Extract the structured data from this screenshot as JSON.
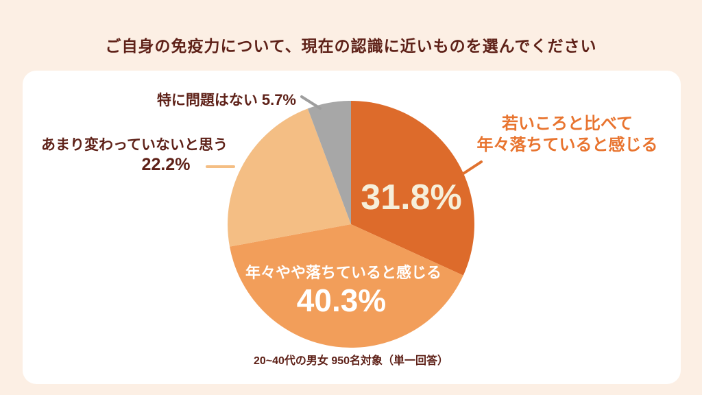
{
  "page": {
    "title": "ご自身の免疫力について、現在の認識に近いものを選んでください",
    "footnote": "20~40代の男女 950名対象（単一回答）"
  },
  "colors": {
    "page_background": "#FCEFE4",
    "card_background": "#FFFFFF",
    "dark_text": "#5E2118",
    "accent_orange": "#E8742F",
    "leader_gray": "#9E9E9E",
    "leader_light_orange": "#F4BE84",
    "leader_orange": "#E0712E",
    "inside_pct_cream": "#F6EFDA",
    "inside_text_white": "#FFFFFF"
  },
  "chart_data": {
    "type": "pie",
    "title": "ご自身の免疫力について、現在の認識に近いものを選んでください",
    "start_angle_deg": 0,
    "direction": "clockwise",
    "slices": [
      {
        "label": "若いころと比べて年々落ちていると感じる",
        "value": 31.8,
        "display": "31.8%",
        "color": "#DD6B2B"
      },
      {
        "label": "年々やや落ちていると感じる",
        "value": 40.3,
        "display": "40.3%",
        "color": "#F29E5A"
      },
      {
        "label": "あまり変わっていないと思う",
        "value": 22.2,
        "display": "22.2%",
        "color": "#F4BE84"
      },
      {
        "label": "特に問題はない",
        "value": 5.7,
        "display": "5.7%",
        "color": "#A7A7A7"
      }
    ],
    "legend_position": "callout-labels",
    "source_note": "20~40代の男女 950名対象（単一回答）"
  },
  "callouts": {
    "top": {
      "label": "特に問題はない",
      "pct": "5.7%"
    },
    "left": {
      "label": "あまり変わっていないと思う",
      "pct": "22.2%"
    },
    "right": {
      "line1": "若いころと比べて",
      "line2": "年々落ちていると感じる"
    },
    "inside_dark": {
      "pct": "31.8%"
    },
    "inside_bottom": {
      "label": "年々やや落ちていると感じる",
      "pct": "40.3%"
    }
  }
}
